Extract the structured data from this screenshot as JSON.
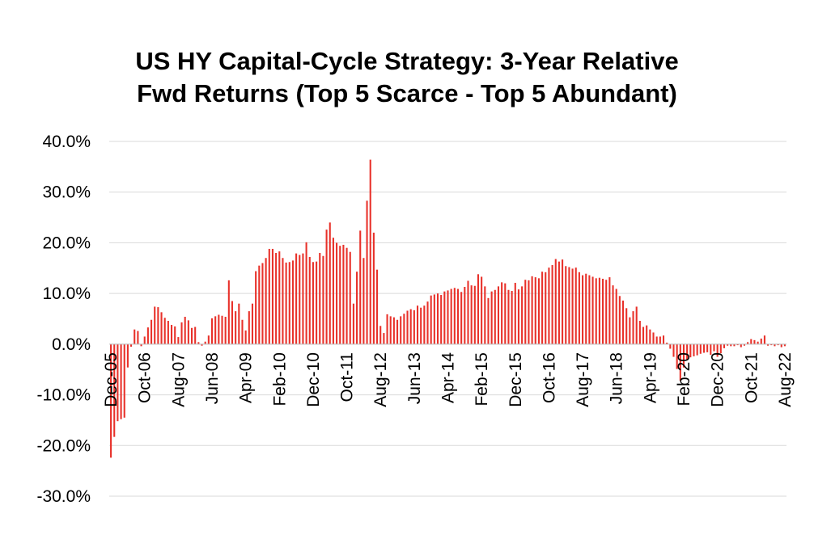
{
  "chart_data": {
    "type": "bar",
    "title_lines": [
      "US HY Capital-Cycle Strategy: 3-Year Relative",
      "Fwd Returns (Top 5 Scarce - Top 5 Abundant)"
    ],
    "xlabel": "",
    "ylabel": "",
    "ylim": [
      -30,
      40
    ],
    "yticks": [
      -30,
      -20,
      -10,
      0,
      10,
      20,
      30,
      40
    ],
    "ytick_labels": [
      "-30.0%",
      "-20.0%",
      "-10.0%",
      "0.0%",
      "10.0%",
      "20.0%",
      "30.0%",
      "40.0%"
    ],
    "grid": true,
    "legend": "none",
    "bar_color": "#e8312a",
    "start_month": "Dec-05",
    "x_tick_labels": [
      "Dec-05",
      "Oct-06",
      "Aug-07",
      "Jun-08",
      "Apr-09",
      "Feb-10",
      "Dec-10",
      "Oct-11",
      "Aug-12",
      "Jun-13",
      "Apr-14",
      "Feb-15",
      "Dec-15",
      "Oct-16",
      "Aug-17",
      "Jun-18",
      "Apr-19",
      "Feb-20",
      "Dec-20",
      "Oct-21",
      "Aug-22"
    ],
    "x_tick_index": [
      0,
      10,
      20,
      30,
      40,
      50,
      60,
      70,
      80,
      90,
      100,
      110,
      120,
      130,
      140,
      150,
      160,
      170,
      180,
      190,
      200
    ],
    "values": [
      -22.4,
      -18.3,
      -15.2,
      -14.8,
      -14.5,
      -4.6,
      -0.5,
      2.9,
      2.6,
      -0.4,
      1.5,
      3.3,
      4.8,
      7.4,
      7.3,
      6.3,
      5.2,
      4.6,
      3.8,
      3.5,
      1.4,
      4.3,
      5.4,
      4.7,
      3.2,
      3.4,
      0.4,
      -0.3,
      0.5,
      1.7,
      5.1,
      5.5,
      5.8,
      5.6,
      5.4,
      12.6,
      8.5,
      6.5,
      8.0,
      4.8,
      2.7,
      6.5,
      8.0,
      14.4,
      15.5,
      16.0,
      17.0,
      18.8,
      18.8,
      18.0,
      18.3,
      17.0,
      16.1,
      16.2,
      16.5,
      17.9,
      17.6,
      17.9,
      20.1,
      17.2,
      16.2,
      16.3,
      18.0,
      17.4,
      22.6,
      24.0,
      21.0,
      20.0,
      19.4,
      19.6,
      19.0,
      18.2,
      8.0,
      14.3,
      22.4,
      17.0,
      28.3,
      36.4,
      22.0,
      14.7,
      3.6,
      2.2,
      5.9,
      5.5,
      5.3,
      4.8,
      5.5,
      6.0,
      6.6,
      6.9,
      6.7,
      7.6,
      7.2,
      7.6,
      8.4,
      9.6,
      9.8,
      10.0,
      9.7,
      10.4,
      10.6,
      10.9,
      11.1,
      10.9,
      10.3,
      11.3,
      12.5,
      11.6,
      11.5,
      13.8,
      13.3,
      11.4,
      9.1,
      10.4,
      10.7,
      11.4,
      12.2,
      12.0,
      10.7,
      10.5,
      12.1,
      10.8,
      11.4,
      12.7,
      12.6,
      13.4,
      13.2,
      13.0,
      14.3,
      14.2,
      15.1,
      15.6,
      16.8,
      16.3,
      16.7,
      15.4,
      15.2,
      14.9,
      15.1,
      14.2,
      13.6,
      13.9,
      13.6,
      13.3,
      13.0,
      13.1,
      12.9,
      12.7,
      13.2,
      11.6,
      10.9,
      9.5,
      8.6,
      7.1,
      5.3,
      6.5,
      7.4,
      4.6,
      3.4,
      3.7,
      2.9,
      2.3,
      1.5,
      1.5,
      1.7,
      0.3,
      -0.9,
      -2.5,
      -4.9,
      -7.2,
      -4.6,
      -3.2,
      -2.6,
      -2.4,
      -2.2,
      -1.9,
      -1.7,
      -1.6,
      -2.1,
      -1.4,
      -2.5,
      -1.8,
      -0.8,
      -0.3,
      -0.4,
      -0.4,
      -0.2,
      -0.6,
      -0.3,
      0.4,
      1.0,
      0.8,
      0.5,
      1.1,
      1.7,
      -0.3,
      -0.2,
      -0.4,
      -0.2,
      -0.6,
      -0.4
    ]
  }
}
